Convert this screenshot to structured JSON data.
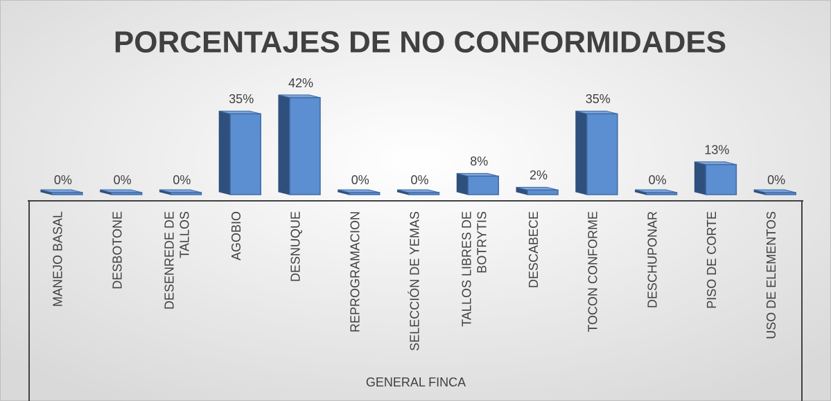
{
  "chart_data": {
    "type": "bar3d",
    "title": "PORCENTAJES DE NO CONFORMIDADES",
    "categories": [
      "MANEJO BASAL",
      "DESBOTONE",
      "DESENREDE DE TALLOS",
      "AGOBIO",
      "DESNUQUE",
      "REPROGRAMACION",
      "SELECCIÓN DE YEMAS",
      "TALLOS LIBRES DE BOTRYTIS",
      "DESCABECE",
      "TOCON CONFORME",
      "DESCHUPONAR",
      "PISO DE CORTE",
      "USO DE ELEMENTOS"
    ],
    "values": [
      0,
      0,
      0,
      35,
      42,
      0,
      0,
      8,
      2,
      35,
      0,
      13,
      0
    ],
    "value_labels": [
      "0%",
      "0%",
      "0%",
      "35%",
      "42%",
      "0%",
      "0%",
      "8%",
      "2%",
      "35%",
      "0%",
      "13%",
      "0%"
    ],
    "x_group_label": "GENERAL FINCA",
    "color": "#5b8fd1",
    "ylim": [
      0,
      45
    ]
  }
}
